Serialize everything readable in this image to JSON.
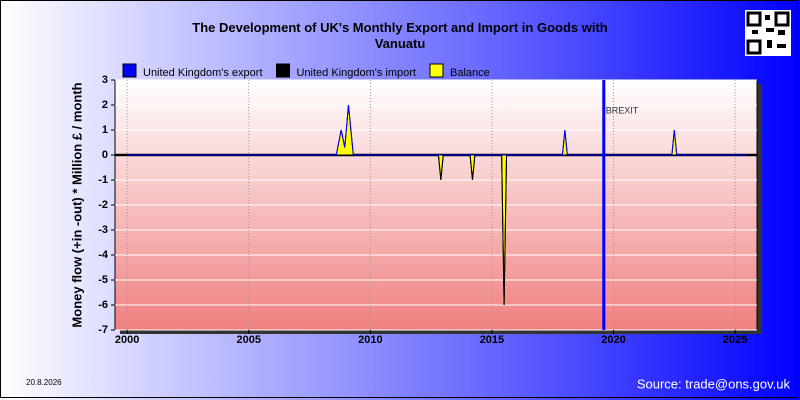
{
  "chart_data": {
    "type": "line",
    "title": "The Development of UK's Monthly Export and Import in Goods with Vanuatu",
    "y_label": "Money flow (+in -out) * Million £ / month",
    "date": "20.8.2026",
    "source": "Source: trade@ons.gov.uk",
    "x": [
      2000,
      2008.6,
      2008.8,
      2008.95,
      2009.1,
      2009.3,
      2012.8,
      2012.9,
      2013.0,
      2014.1,
      2014.2,
      2014.3,
      2015.4,
      2015.5,
      2015.6,
      2017.9,
      2018.0,
      2018.1,
      2022.4,
      2022.5,
      2022.6,
      2025.5
    ],
    "series": [
      {
        "name": "United Kingdom's export",
        "color": "#0000ff",
        "values": [
          0,
          0,
          1,
          0.3,
          2,
          0,
          0,
          0,
          0,
          0,
          0,
          0,
          0,
          0,
          0,
          0,
          1,
          0,
          0,
          1,
          0,
          0
        ]
      },
      {
        "name": "United Kingdom's import",
        "color": "#000000",
        "values": [
          0,
          0,
          0,
          0,
          0,
          0,
          0,
          -1,
          0,
          0,
          -1,
          0,
          0,
          -6,
          0,
          0,
          0,
          0,
          0,
          0,
          0,
          0
        ]
      },
      {
        "name": "Balance",
        "color": "#ffff00",
        "values": [
          0,
          0,
          1,
          0.3,
          2,
          0,
          0,
          -1,
          0,
          0,
          -1,
          0,
          0,
          -6,
          0,
          0,
          1,
          0,
          0,
          1,
          0,
          0
        ]
      }
    ],
    "annotations": [
      {
        "text": "BREXIT",
        "x": 2019.6
      }
    ],
    "xlim": [
      1999.5,
      2025.9
    ],
    "xticks": [
      2000,
      2005,
      2010,
      2015,
      2020,
      2025
    ],
    "ylim": [
      -7,
      3
    ],
    "yticks": [
      -7,
      -6,
      -5,
      -4,
      -3,
      -2,
      -1,
      0,
      1,
      2,
      3
    ],
    "grid": true
  }
}
